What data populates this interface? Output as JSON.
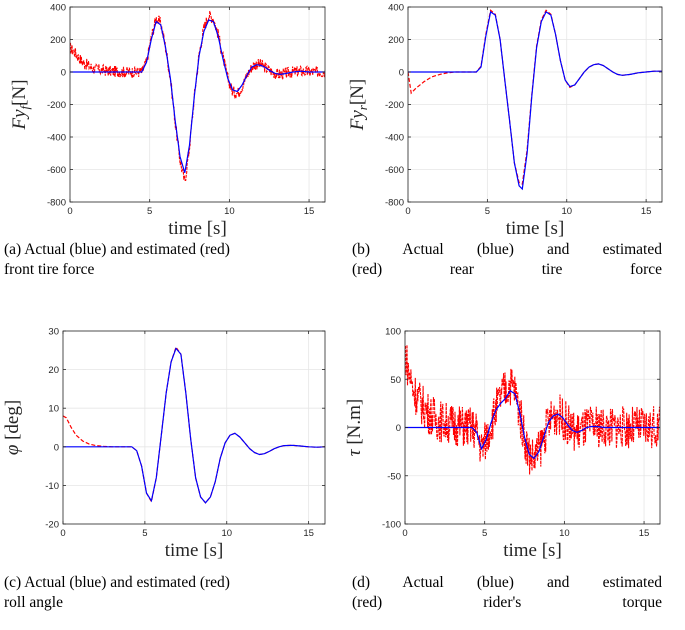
{
  "chart_data": [
    {
      "id": "a",
      "type": "line",
      "xlabel": "time [s]",
      "ylabel": "Fy_f [N]",
      "ylabel_main": "Fy",
      "ylabel_sub": "f",
      "ylabel_unit": "[N]",
      "xlim": [
        0,
        16
      ],
      "ylim": [
        -800,
        400
      ],
      "xticks": [
        0,
        5,
        10,
        15
      ],
      "yticks": [
        -800,
        -600,
        -400,
        -200,
        0,
        200,
        400
      ],
      "grid": true,
      "series": [
        {
          "color": "#0000ff",
          "style": "solid",
          "x": [
            0,
            4.5,
            4.8,
            5.1,
            5.4,
            5.7,
            6.0,
            6.3,
            6.6,
            6.9,
            7.2,
            7.5,
            7.8,
            8.1,
            8.4,
            8.7,
            9.0,
            9.3,
            9.6,
            9.9,
            10.2,
            10.5,
            10.8,
            11.1,
            11.4,
            11.7,
            12.0,
            12.3,
            12.6,
            12.9,
            13.2,
            13.5,
            14.0,
            14.5,
            15.0,
            15.5,
            16.0
          ],
          "y": [
            0,
            0,
            60,
            200,
            310,
            290,
            150,
            -40,
            -300,
            -520,
            -620,
            -450,
            -150,
            100,
            250,
            320,
            310,
            220,
            80,
            -40,
            -110,
            -120,
            -80,
            -20,
            30,
            45,
            40,
            25,
            5,
            -10,
            -15,
            -10,
            0,
            5,
            0,
            0,
            0
          ]
        },
        {
          "color": "#ff0000",
          "style": "dashed",
          "noise": 35,
          "x": [
            0,
            0.3,
            0.8,
            1.5,
            2.5,
            3.5,
            4.5,
            4.8,
            5.1,
            5.4,
            5.7,
            6.0,
            6.3,
            6.6,
            6.9,
            7.2,
            7.5,
            7.8,
            8.1,
            8.4,
            8.7,
            9.0,
            9.3,
            9.6,
            9.9,
            10.2,
            10.5,
            10.8,
            11.1,
            11.4,
            11.7,
            12.0,
            12.3,
            12.6,
            12.9,
            13.2,
            13.5,
            14.0,
            14.5,
            15.0,
            15.5,
            16.0
          ],
          "y": [
            150,
            120,
            60,
            20,
            5,
            0,
            0,
            60,
            210,
            330,
            300,
            150,
            -40,
            -310,
            -540,
            -680,
            -460,
            -150,
            110,
            270,
            350,
            330,
            230,
            90,
            -40,
            -120,
            -130,
            -90,
            -20,
            30,
            50,
            45,
            25,
            5,
            -10,
            -15,
            -10,
            0,
            5,
            0,
            0,
            0
          ]
        }
      ]
    },
    {
      "id": "b",
      "type": "line",
      "xlabel": "time [s]",
      "ylabel": "Fy_r [N]",
      "ylabel_main": "Fy",
      "ylabel_sub": "r",
      "ylabel_unit": "[N]",
      "xlim": [
        0,
        16
      ],
      "ylim": [
        -800,
        400
      ],
      "xticks": [
        0,
        5,
        10,
        15
      ],
      "yticks": [
        -800,
        -600,
        -400,
        -200,
        0,
        200,
        400
      ],
      "grid": true,
      "series": [
        {
          "color": "#0000ff",
          "style": "solid",
          "x": [
            0,
            4.3,
            4.6,
            4.9,
            5.2,
            5.5,
            5.8,
            6.1,
            6.4,
            6.7,
            7.0,
            7.2,
            7.5,
            7.8,
            8.1,
            8.4,
            8.7,
            9.0,
            9.3,
            9.6,
            9.9,
            10.2,
            10.5,
            10.8,
            11.1,
            11.4,
            11.7,
            12.0,
            12.3,
            12.6,
            12.9,
            13.2,
            13.5,
            14.0,
            14.5,
            15.0,
            15.5,
            16.0
          ],
          "y": [
            0,
            0,
            30,
            220,
            370,
            350,
            200,
            -50,
            -300,
            -560,
            -700,
            -720,
            -500,
            -150,
            150,
            310,
            370,
            350,
            230,
            70,
            -50,
            -90,
            -80,
            -40,
            0,
            30,
            45,
            50,
            40,
            20,
            0,
            -15,
            -20,
            -15,
            -5,
            0,
            5,
            5
          ]
        },
        {
          "color": "#ff0000",
          "style": "dashed",
          "x": [
            0,
            0.2,
            0.5,
            1.0,
            1.5,
            2.0,
            2.5,
            3.0,
            4.3,
            4.6,
            4.9,
            5.2,
            5.5,
            5.8,
            6.1,
            6.4,
            6.7,
            7.0,
            7.2,
            7.5,
            7.8,
            8.1,
            8.4,
            8.7,
            9.0,
            9.3,
            9.6,
            9.9,
            10.2,
            10.5,
            10.8,
            11.1,
            11.4,
            11.7,
            12.0,
            12.3,
            12.6,
            12.9,
            13.2,
            13.5,
            14.0,
            14.5,
            15.0,
            15.5,
            16.0
          ],
          "y": [
            0,
            -130,
            -100,
            -60,
            -30,
            -15,
            -5,
            0,
            0,
            35,
            230,
            380,
            355,
            200,
            -50,
            -300,
            -560,
            -680,
            -690,
            -480,
            -140,
            160,
            320,
            380,
            355,
            230,
            70,
            -50,
            -95,
            -80,
            -40,
            0,
            30,
            45,
            50,
            40,
            20,
            0,
            -15,
            -20,
            -15,
            -5,
            0,
            5,
            5
          ]
        }
      ]
    },
    {
      "id": "c",
      "type": "line",
      "xlabel": "time [s]",
      "ylabel": "φ [deg]",
      "ylabel_main": "φ",
      "ylabel_sub": "",
      "ylabel_unit": "[deg]",
      "xlim": [
        0,
        16
      ],
      "ylim": [
        -20,
        30
      ],
      "xticks": [
        0,
        5,
        10,
        15
      ],
      "yticks": [
        -20,
        -10,
        0,
        10,
        20,
        30
      ],
      "grid": true,
      "series": [
        {
          "color": "#0000ff",
          "style": "solid",
          "x": [
            0,
            4.2,
            4.5,
            4.8,
            5.1,
            5.4,
            5.7,
            6.0,
            6.3,
            6.6,
            6.9,
            7.2,
            7.5,
            7.8,
            8.1,
            8.4,
            8.7,
            9.0,
            9.3,
            9.6,
            9.9,
            10.2,
            10.5,
            10.8,
            11.1,
            11.4,
            11.7,
            12.0,
            12.3,
            12.6,
            12.9,
            13.2,
            13.5,
            14.0,
            14.5,
            15.0,
            15.5,
            16.0
          ],
          "y": [
            0,
            0,
            -1,
            -5,
            -12,
            -14,
            -8,
            3,
            14,
            22,
            25.5,
            24,
            14,
            2,
            -8,
            -13,
            -14.5,
            -13,
            -9,
            -3,
            1,
            3,
            3.5,
            2.5,
            1,
            -0.5,
            -1.5,
            -2,
            -1.8,
            -1.2,
            -0.5,
            0,
            0.3,
            0.4,
            0.2,
            0,
            -0.1,
            0
          ]
        },
        {
          "color": "#ff0000",
          "style": "dashed",
          "x": [
            0,
            0.2,
            0.5,
            0.8,
            1.2,
            1.6,
            2.0,
            2.5,
            3.0,
            4.2,
            4.5,
            4.8,
            5.1,
            5.4,
            5.7,
            6.0,
            6.3,
            6.6,
            6.9,
            7.2,
            7.5,
            7.8,
            8.1,
            8.4,
            8.7,
            9.0,
            9.3,
            9.6,
            9.9,
            10.2,
            10.5,
            10.8,
            11.1,
            11.4,
            11.7,
            12.0,
            12.3,
            12.6,
            12.9,
            13.2,
            13.5,
            14.0,
            14.5,
            15.0,
            15.5,
            16.0
          ],
          "y": [
            8,
            7.5,
            5,
            3,
            1.5,
            0.7,
            0.3,
            0.1,
            0,
            0,
            -1,
            -5,
            -12,
            -14.2,
            -8,
            3,
            14,
            22,
            25.8,
            24,
            14,
            2,
            -8,
            -13,
            -14.5,
            -13,
            -9,
            -3,
            1,
            3,
            3.5,
            2.5,
            1,
            -0.5,
            -1.5,
            -2,
            -1.8,
            -1.2,
            -0.5,
            0,
            0.3,
            0.4,
            0.2,
            0,
            -0.1,
            0
          ]
        }
      ]
    },
    {
      "id": "d",
      "type": "line",
      "xlabel": "time [s]",
      "ylabel": "τ [N.m]",
      "ylabel_main": "τ",
      "ylabel_sub": "",
      "ylabel_unit": "[N.m]",
      "xlim": [
        0,
        16
      ],
      "ylim": [
        -100,
        100
      ],
      "xticks": [
        0,
        5,
        10,
        15
      ],
      "yticks": [
        -100,
        -50,
        0,
        50,
        100
      ],
      "grid": true,
      "series": [
        {
          "color": "#0000ff",
          "style": "solid",
          "x": [
            0,
            4.2,
            4.5,
            4.8,
            5.1,
            5.4,
            5.7,
            6.0,
            6.3,
            6.6,
            6.9,
            7.2,
            7.5,
            7.8,
            8.1,
            8.4,
            8.7,
            9.0,
            9.3,
            9.6,
            9.9,
            10.2,
            10.5,
            10.8,
            11.1,
            11.4,
            11.7,
            12.0,
            12.5,
            13.0,
            14.0,
            15.0,
            16.0
          ],
          "y": [
            0,
            0,
            -5,
            -22,
            -12,
            5,
            18,
            25,
            30,
            38,
            35,
            15,
            -10,
            -28,
            -32,
            -25,
            -10,
            5,
            12,
            14,
            10,
            3,
            -3,
            -5,
            -3,
            0,
            1,
            1,
            0,
            0,
            0,
            0,
            0
          ]
        },
        {
          "color": "#ff0000",
          "style": "dashed",
          "noise": 22,
          "x": [
            0,
            0.2,
            0.5,
            1.0,
            1.5,
            2.0,
            3.0,
            4.2,
            4.5,
            4.8,
            5.1,
            5.4,
            5.7,
            6.0,
            6.3,
            6.6,
            6.9,
            7.2,
            7.5,
            7.8,
            8.1,
            8.4,
            8.7,
            9.0,
            9.3,
            9.6,
            9.9,
            10.2,
            10.5,
            10.8,
            11.1,
            11.4,
            11.7,
            12.0,
            12.5,
            13.0,
            14.0,
            15.0,
            16.0
          ],
          "y": [
            80,
            60,
            40,
            25,
            15,
            8,
            3,
            0,
            -5,
            -22,
            -12,
            5,
            18,
            30,
            40,
            45,
            38,
            15,
            -10,
            -28,
            -32,
            -25,
            -10,
            5,
            12,
            14,
            10,
            3,
            -3,
            -5,
            -3,
            0,
            1,
            1,
            0,
            0,
            0,
            0,
            0
          ]
        }
      ]
    }
  ],
  "captions": {
    "a": {
      "line1": "(a) Actual (blue) and estimated (red)",
      "line2": "front tire force"
    },
    "b": {
      "line1": "(b) Actual (blue) and estimated",
      "line2": "(red) rear tire force"
    },
    "c": {
      "line1": "(c) Actual (blue) and estimated (red)",
      "line2": "roll angle"
    },
    "d": {
      "line1": "(d) Actual (blue) and estimated",
      "line2": "(red) rider's torque"
    }
  }
}
